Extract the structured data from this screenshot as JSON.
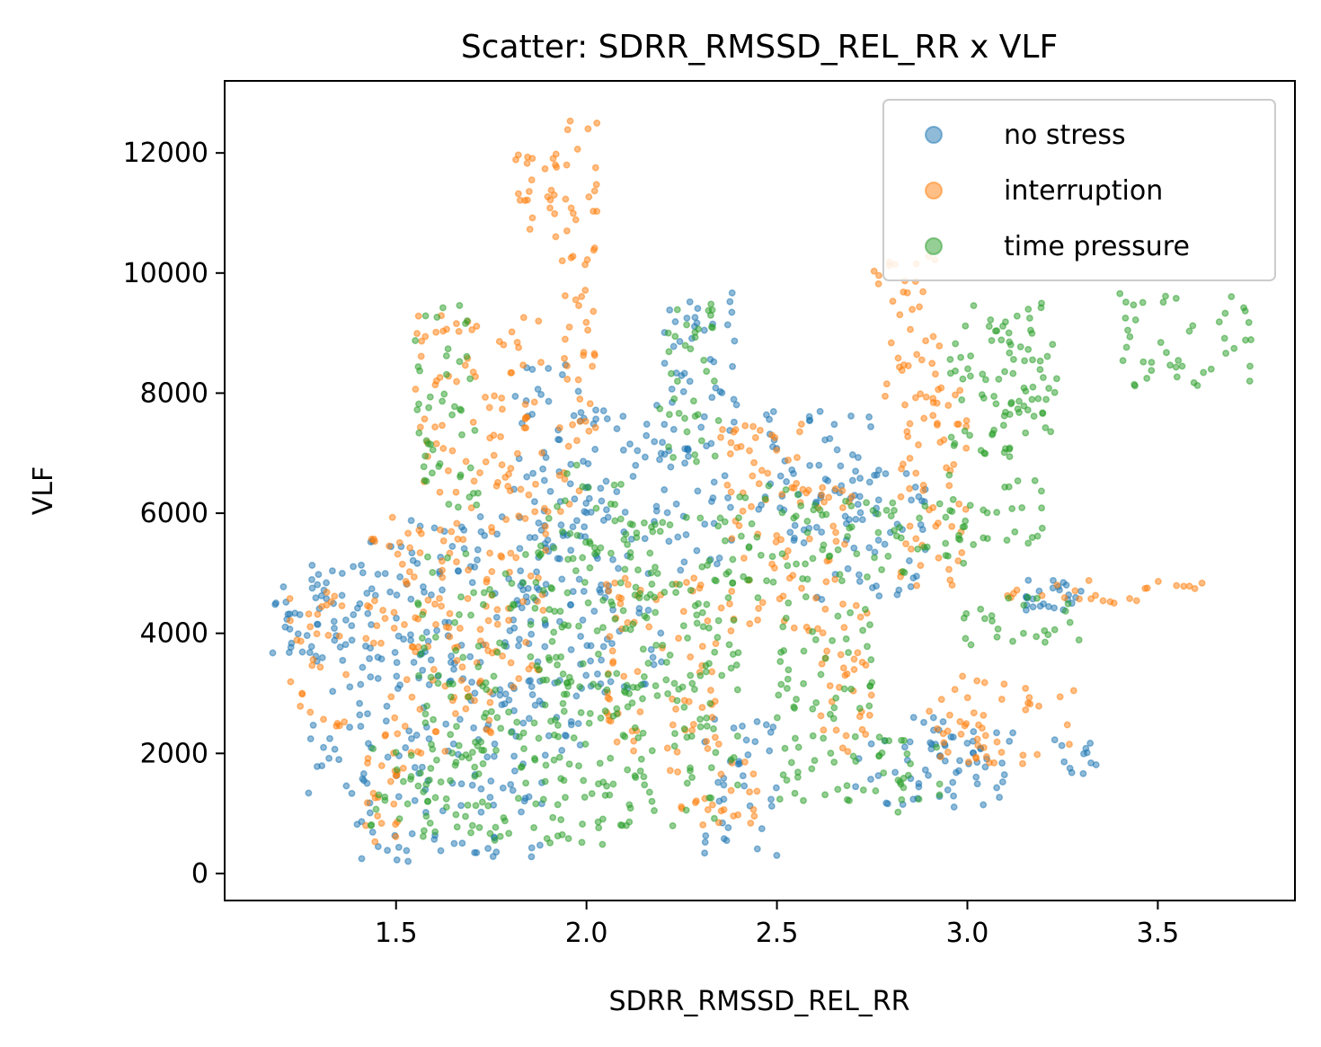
{
  "chart_data": {
    "type": "scatter",
    "title": "Scatter: SDRR_RMSSD_REL_RR x VLF",
    "xlabel": "SDRR_RMSSD_REL_RR",
    "ylabel": "VLF",
    "xlim": [
      1.05,
      3.86
    ],
    "ylim": [
      -450,
      13200
    ],
    "xticks": [
      1.5,
      2.0,
      2.5,
      3.0,
      3.5
    ],
    "xtick_labels": [
      "1.5",
      "2.0",
      "2.5",
      "3.0",
      "3.5"
    ],
    "yticks": [
      0,
      2000,
      4000,
      6000,
      8000,
      10000,
      12000
    ],
    "ytick_labels": [
      "0",
      "2000",
      "4000",
      "6000",
      "8000",
      "10000",
      "12000"
    ],
    "grid": false,
    "legend": "top-right",
    "series": [
      {
        "name": "no stress",
        "color": "#1f77b4",
        "alpha": 0.5,
        "clusters": [
          {
            "x": [
              1.17,
              1.3
            ],
            "y": [
              3500,
              4800
            ]
          },
          {
            "x": [
              1.27,
              1.38
            ],
            "y": [
              1000,
              5200
            ]
          },
          {
            "x": [
              1.38,
              1.52
            ],
            "y": [
              800,
              5600
            ]
          },
          {
            "x": [
              1.4,
              1.9
            ],
            "y": [
              200,
              700
            ]
          },
          {
            "x": [
              1.5,
              1.9
            ],
            "y": [
              1000,
              6000
            ]
          },
          {
            "x": [
              1.8,
              2.0
            ],
            "y": [
              2000,
              8500
            ]
          },
          {
            "x": [
              2.0,
              2.2
            ],
            "y": [
              3000,
              7800
            ]
          },
          {
            "x": [
              2.2,
              2.4
            ],
            "y": [
              5000,
              9700
            ]
          },
          {
            "x": [
              2.3,
              2.5
            ],
            "y": [
              300,
              2600
            ]
          },
          {
            "x": [
              2.45,
              2.75
            ],
            "y": [
              5500,
              7700
            ]
          },
          {
            "x": [
              2.6,
              2.9
            ],
            "y": [
              4500,
              6800
            ]
          },
          {
            "x": [
              2.7,
              3.1
            ],
            "y": [
              1100,
              2600
            ]
          },
          {
            "x": [
              2.9,
              3.37
            ],
            "y": [
              1600,
              2400
            ]
          },
          {
            "x": [
              3.15,
              3.3
            ],
            "y": [
              4300,
              4900
            ]
          }
        ]
      },
      {
        "name": "interruption",
        "color": "#ff7f0e",
        "alpha": 0.5,
        "clusters": [
          {
            "x": [
              1.22,
              1.38
            ],
            "y": [
              2400,
              4700
            ]
          },
          {
            "x": [
              1.42,
              1.55
            ],
            "y": [
              400,
              6000
            ]
          },
          {
            "x": [
              1.55,
              1.75
            ],
            "y": [
              2000,
              9300
            ]
          },
          {
            "x": [
              1.75,
              1.9
            ],
            "y": [
              3000,
              9300
            ]
          },
          {
            "x": [
              1.8,
              1.93
            ],
            "y": [
              10500,
              12000
            ]
          },
          {
            "x": [
              1.92,
              2.03
            ],
            "y": [
              6000,
              12600
            ]
          },
          {
            "x": [
              2.05,
              2.35
            ],
            "y": [
              2000,
              5000
            ]
          },
          {
            "x": [
              2.2,
              2.45
            ],
            "y": [
              800,
              1900
            ]
          },
          {
            "x": [
              2.35,
              2.6
            ],
            "y": [
              4000,
              7500
            ]
          },
          {
            "x": [
              2.6,
              2.75
            ],
            "y": [
              2000,
              6500
            ]
          },
          {
            "x": [
              2.75,
              2.93
            ],
            "y": [
              7800,
              10300
            ]
          },
          {
            "x": [
              2.82,
              3.0
            ],
            "y": [
              4500,
              8600
            ]
          },
          {
            "x": [
              2.9,
              3.3
            ],
            "y": [
              1800,
              3300
            ]
          },
          {
            "x": [
              3.1,
              3.65
            ],
            "y": [
              4500,
              4950
            ]
          }
        ]
      },
      {
        "name": "time pressure",
        "color": "#2ca02c",
        "alpha": 0.5,
        "clusters": [
          {
            "x": [
              1.43,
              1.6
            ],
            "y": [
              600,
              2200
            ]
          },
          {
            "x": [
              1.55,
              1.72
            ],
            "y": [
              6000,
              9500
            ]
          },
          {
            "x": [
              1.55,
              1.95
            ],
            "y": [
              500,
              5500
            ]
          },
          {
            "x": [
              1.9,
              2.15
            ],
            "y": [
              400,
              6800
            ]
          },
          {
            "x": [
              2.1,
              2.4
            ],
            "y": [
              700,
              6000
            ]
          },
          {
            "x": [
              2.18,
              2.35
            ],
            "y": [
              6800,
              9500
            ]
          },
          {
            "x": [
              2.35,
              2.6
            ],
            "y": [
              4500,
              6500
            ]
          },
          {
            "x": [
              2.5,
              2.75
            ],
            "y": [
              1200,
              4500
            ]
          },
          {
            "x": [
              2.6,
              3.05
            ],
            "y": [
              4800,
              6200
            ]
          },
          {
            "x": [
              2.7,
              2.95
            ],
            "y": [
              1000,
              2300
            ]
          },
          {
            "x": [
              2.95,
              3.3
            ],
            "y": [
              3800,
              4600
            ]
          },
          {
            "x": [
              2.95,
              3.2
            ],
            "y": [
              5500,
              9500
            ]
          },
          {
            "x": [
              3.05,
              3.25
            ],
            "y": [
              7000,
              9200
            ]
          },
          {
            "x": [
              3.4,
              3.75
            ],
            "y": [
              8100,
              9700
            ]
          }
        ]
      }
    ]
  }
}
